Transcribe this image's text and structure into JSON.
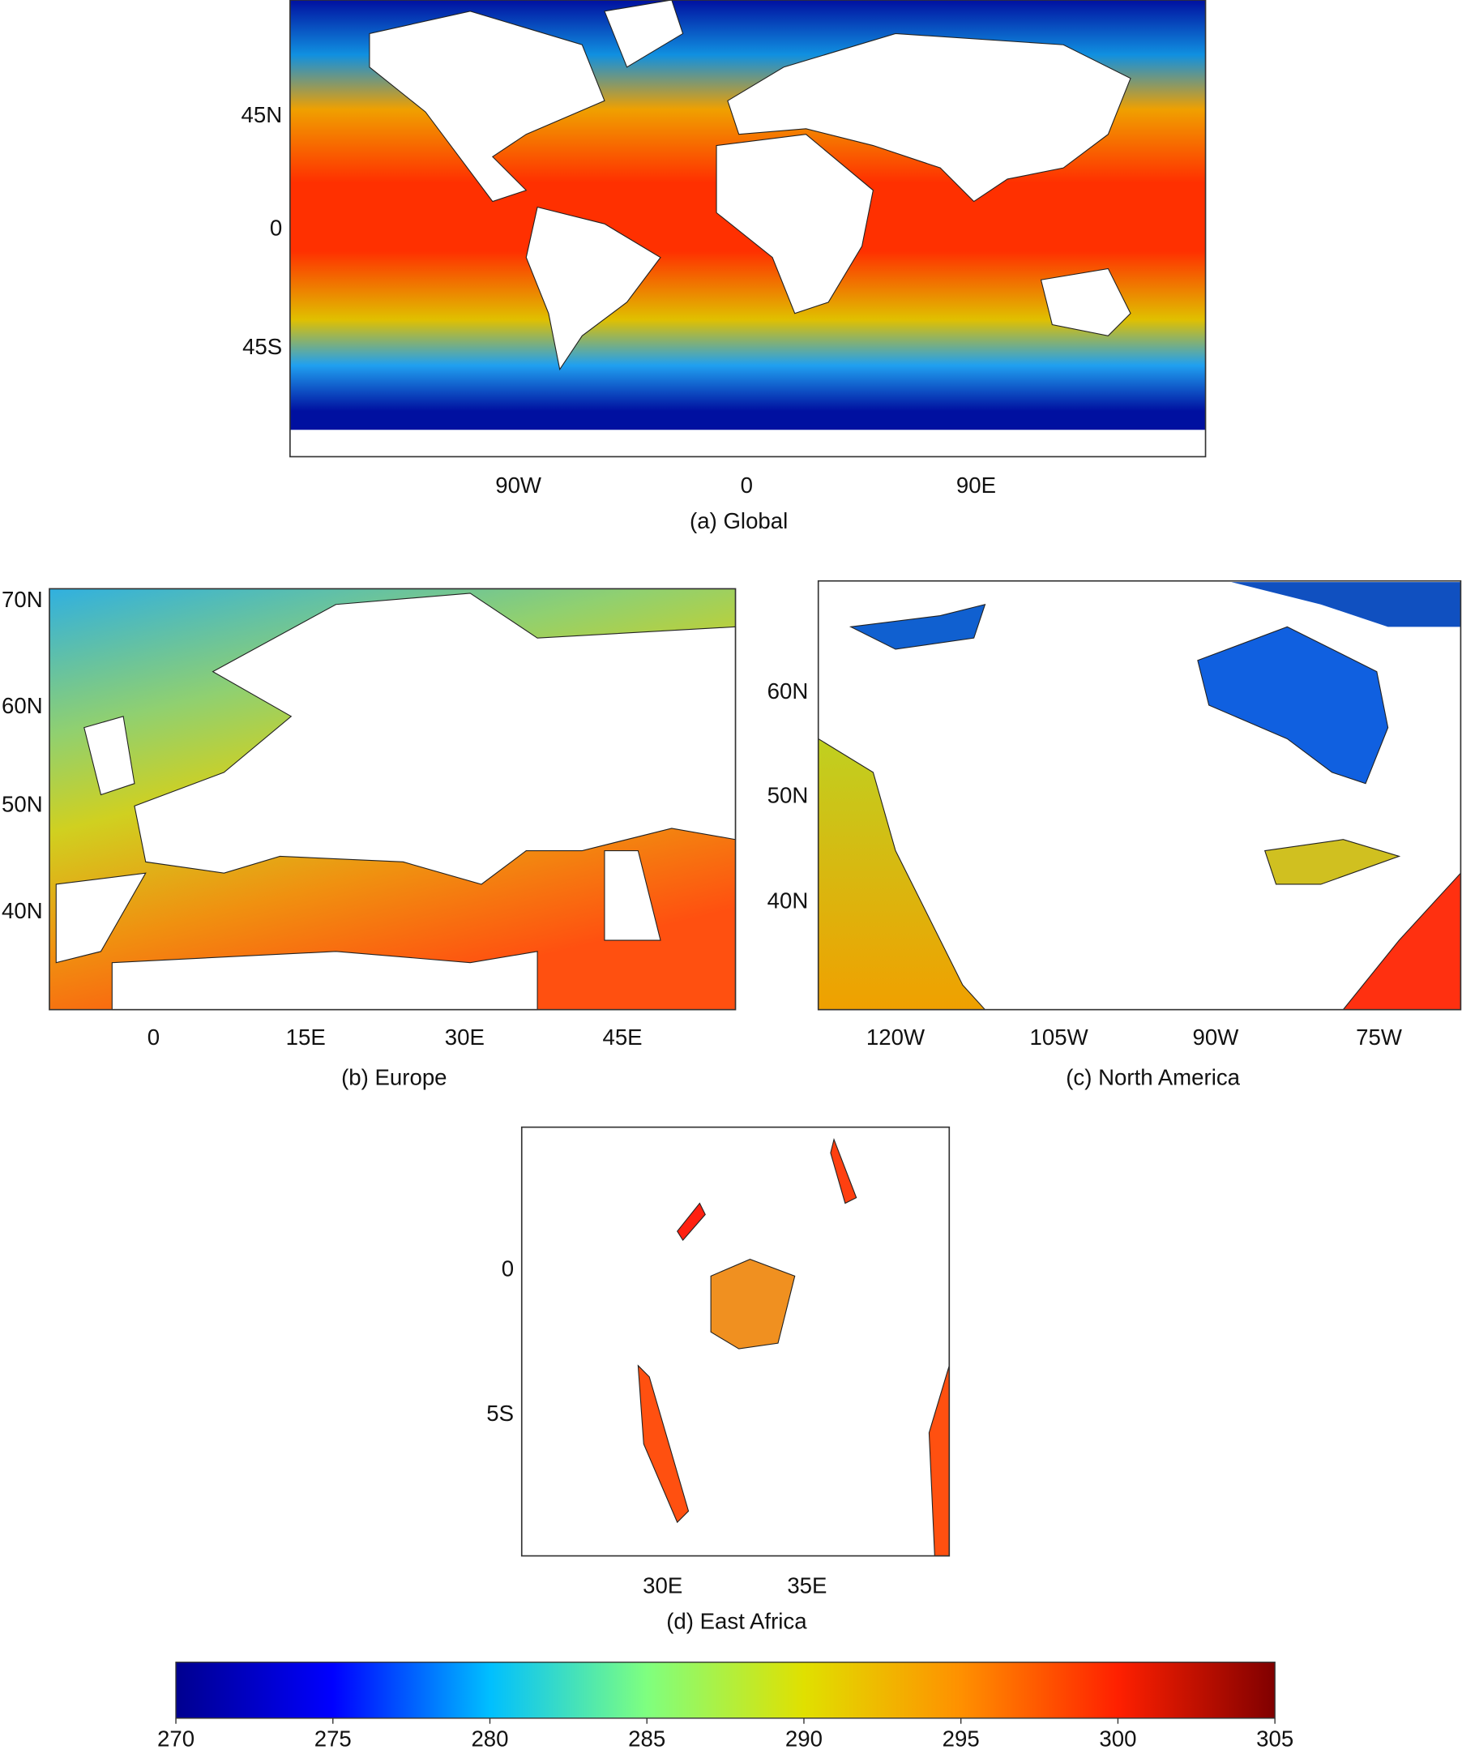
{
  "panels": [
    {
      "xticks": [
        "90W",
        "0",
        "90E"
      ],
      "yticks": [
        "45N",
        "0",
        "45S"
      ],
      "caption": "(a) Global"
    },
    {
      "xticks": [
        "0",
        "15E",
        "30E",
        "45E"
      ],
      "yticks": [
        "70N",
        "60N",
        "50N",
        "40N"
      ],
      "caption": "(b) Europe"
    },
    {
      "xticks": [
        "120W",
        "105W",
        "90W",
        "75W"
      ],
      "yticks": [
        "60N",
        "50N",
        "40N"
      ],
      "caption": "(c) North America"
    },
    {
      "xticks": [
        "30E",
        "35E"
      ],
      "yticks": [
        "0",
        "5S"
      ],
      "caption": "(d) East Africa"
    }
  ],
  "colorbar": {
    "lim": [
      270,
      305
    ],
    "ticks": [
      270,
      275,
      280,
      285,
      290,
      295,
      300,
      305
    ],
    "colors": [
      "#00008f",
      "#0000ff",
      "#00bfff",
      "#7fff7f",
      "#e0e000",
      "#ff9000",
      "#ff2000",
      "#800000"
    ]
  }
}
